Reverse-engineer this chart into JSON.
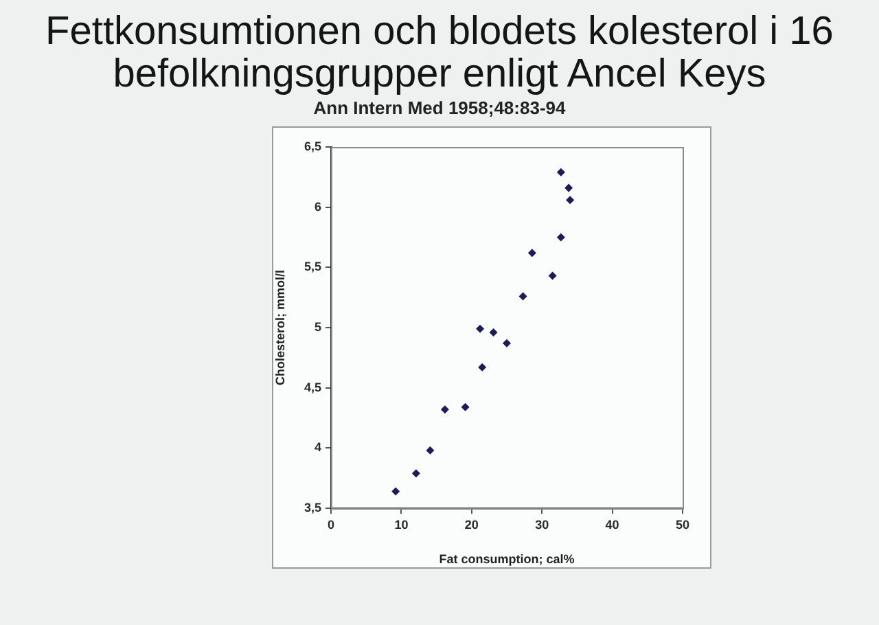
{
  "chart_data": {
    "type": "scatter",
    "title": "Fettkonsumtionen och blodets kolesterol i 16 befolkningsgrupper enligt Ancel Keys",
    "subtitle": "Ann Intern Med 1958;48:83-94",
    "xlabel": "Fat consumption; cal%",
    "ylabel": "Cholesterol; mmol/l",
    "x": [
      9.2,
      12.1,
      14.1,
      16.2,
      19.1,
      21.2,
      21.5,
      23.1,
      25.0,
      27.3,
      28.6,
      31.5,
      32.7,
      32.7,
      33.8,
      34.0
    ],
    "values": [
      3.64,
      3.79,
      3.98,
      4.32,
      4.34,
      4.99,
      4.67,
      4.96,
      4.87,
      5.26,
      5.62,
      5.43,
      5.75,
      6.29,
      6.16,
      6.06
    ],
    "color": "#1c1c5c",
    "marker": "diamond",
    "grid": false,
    "legend": false,
    "xlim": [
      0,
      50
    ],
    "xticks": [
      0,
      10,
      20,
      30,
      40,
      50
    ],
    "ylim": [
      3.5,
      6.5
    ],
    "yticks": [
      {
        "value": 3.5,
        "label": "3,5"
      },
      4,
      {
        "value": 4.5,
        "label": "4,5"
      },
      5,
      {
        "value": 5.5,
        "label": "5,5"
      },
      6,
      {
        "value": 6.5,
        "label": "6,5"
      }
    ]
  }
}
